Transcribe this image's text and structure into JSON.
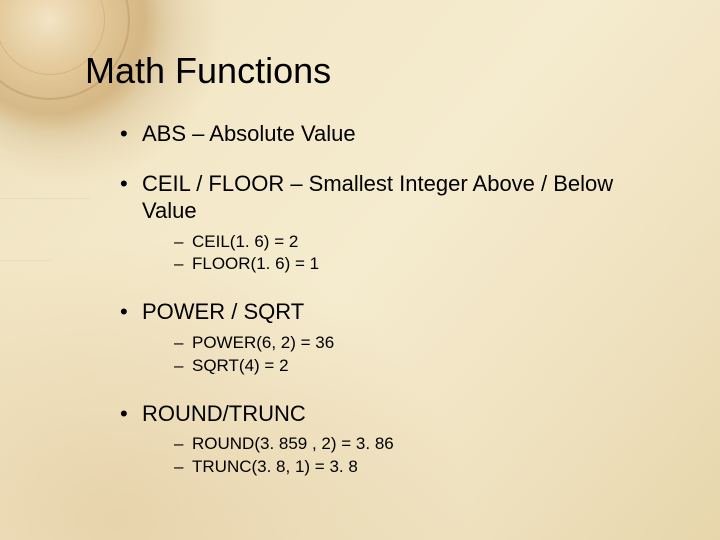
{
  "colors": {
    "text": "#000000",
    "bg_light": "#f5ebce",
    "bg_mid": "#efe2c0",
    "bg_dark": "#e7d6ac",
    "accent_warm": "#c99e5a"
  },
  "typography": {
    "font_family": "Arial, Helvetica, sans-serif",
    "title_fontsize_pt": 27,
    "bullet_fontsize_pt": 17,
    "subbullet_fontsize_pt": 13
  },
  "slide": {
    "title": "Math Functions",
    "bullets": [
      {
        "text": "ABS – Absolute Value",
        "sub": []
      },
      {
        "text": "CEIL / FLOOR – Smallest Integer Above / Below Value",
        "sub": [
          "CEIL(1. 6) = 2",
          "FLOOR(1. 6) = 1"
        ]
      },
      {
        "text": "POWER / SQRT",
        "sub": [
          "POWER(6, 2) = 36",
          "SQRT(4) = 2"
        ]
      },
      {
        "text": "ROUND/TRUNC",
        "sub": [
          "ROUND(3. 859 , 2) = 3. 86",
          "TRUNC(3. 8, 1) = 3. 8"
        ]
      }
    ]
  }
}
